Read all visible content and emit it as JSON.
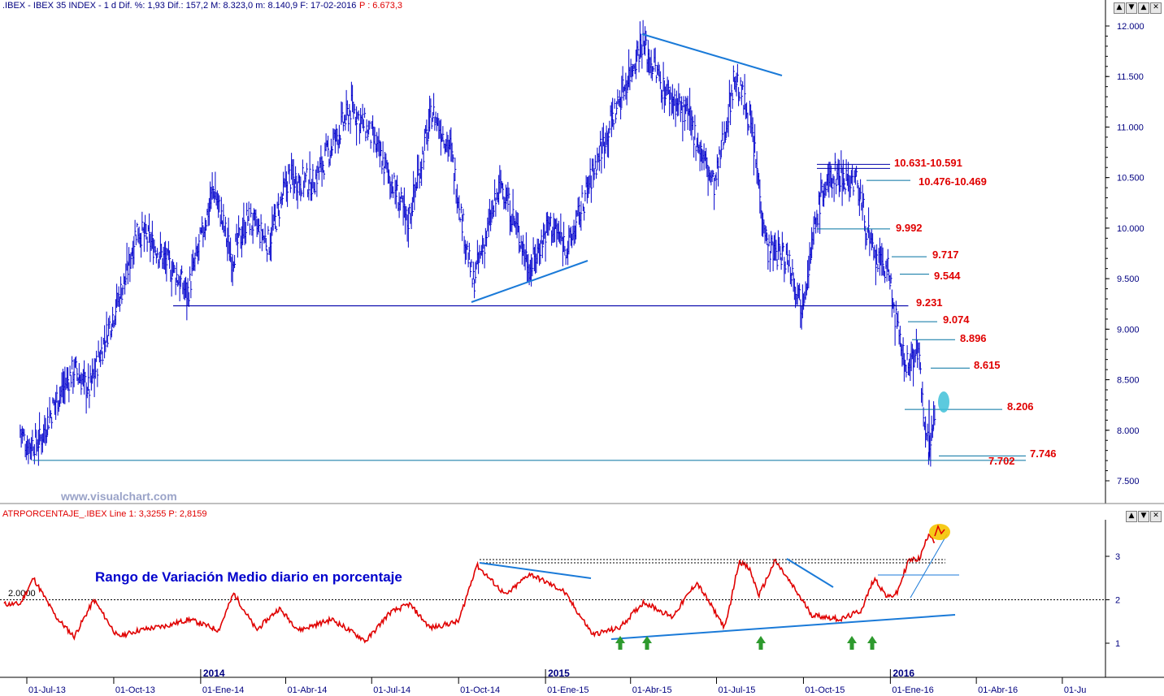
{
  "price_panel": {
    "header_left": ".IBEX - IBEX 35 INDEX - 1 d Dif. %: 1,93 Dif.: 157,2 M: 8.323,0 m: 8.140,9 F: 17-02-2016",
    "header_right": "P : 6.673,3",
    "watermark": "www.visualchart.com"
  },
  "indicator_panel": {
    "header": "ATRPORCENTAJE_.IBEX Line 1: 3,3255  P: 2,8159",
    "annotation": "Rango de Variación Medio diario en porcentaje",
    "ref_label": "2.0000"
  },
  "window_buttons": {
    "price": [
      "▲",
      "▼",
      "▲",
      "✕"
    ],
    "indicator": [
      "▲",
      "▼",
      "✕"
    ]
  },
  "colors": {
    "price_bars": "#0000cc",
    "atr_line": "#e00000",
    "trendline": "#1a7ad8",
    "level_text": "#e00000",
    "arrow": "#2e9a2e",
    "highlight_cyan": "#3fc1d8",
    "highlight_yellow": "#f5c400",
    "axis_text": "#000080",
    "watermark": "#9aa3c8"
  },
  "icons": {
    "up_arrow": "green-up-arrow-icon"
  },
  "chart_data": [
    {
      "type": "ohlc",
      "title": "IBEX 35 INDEX",
      "x_axis": {
        "ticks": [
          "01-Jul-13",
          "01-Oct-13",
          "01-Ene-14",
          "01-Abr-14",
          "01-Jul-14",
          "01-Oct-14",
          "01-Ene-15",
          "01-Abr-15",
          "01-Jul-15",
          "01-Oct-15",
          "01-Ene-16",
          "01-Abr-16",
          "01-Ju"
        ],
        "year_labels": [
          "2014",
          "2015",
          "2016"
        ]
      },
      "y_axis": {
        "range": [
          7300,
          12100
        ],
        "ticks": [
          "12.000",
          "11.500",
          "11.000",
          "10.500",
          "10.000",
          "9.500",
          "9.000",
          "8.500",
          "8.000",
          "7.500"
        ]
      },
      "approx_closes": [
        {
          "date": "2013-06-24",
          "value": 8000
        },
        {
          "date": "2013-07-01",
          "value": 7850
        },
        {
          "date": "2013-07-15",
          "value": 7900
        },
        {
          "date": "2013-08-01",
          "value": 8300
        },
        {
          "date": "2013-08-20",
          "value": 8600
        },
        {
          "date": "2013-09-05",
          "value": 8400
        },
        {
          "date": "2013-09-25",
          "value": 9000
        },
        {
          "date": "2013-10-15",
          "value": 9550
        },
        {
          "date": "2013-10-25",
          "value": 10000
        },
        {
          "date": "2013-11-15",
          "value": 9800
        },
        {
          "date": "2013-12-05",
          "value": 9550
        },
        {
          "date": "2013-12-18",
          "value": 9350
        },
        {
          "date": "2014-01-15",
          "value": 10400
        },
        {
          "date": "2014-02-03",
          "value": 9700
        },
        {
          "date": "2014-02-20",
          "value": 10100
        },
        {
          "date": "2014-03-14",
          "value": 9850
        },
        {
          "date": "2014-04-04",
          "value": 10500
        },
        {
          "date": "2014-04-30",
          "value": 10450
        },
        {
          "date": "2014-06-10",
          "value": 11200
        },
        {
          "date": "2014-07-01",
          "value": 10900
        },
        {
          "date": "2014-07-25",
          "value": 10400
        },
        {
          "date": "2014-08-08",
          "value": 10050
        },
        {
          "date": "2014-09-03",
          "value": 11150
        },
        {
          "date": "2014-09-22",
          "value": 10800
        },
        {
          "date": "2014-10-16",
          "value": 9450
        },
        {
          "date": "2014-11-15",
          "value": 10450
        },
        {
          "date": "2014-12-16",
          "value": 9600
        },
        {
          "date": "2015-01-05",
          "value": 10050
        },
        {
          "date": "2015-01-25",
          "value": 9800
        },
        {
          "date": "2015-03-01",
          "value": 10800
        },
        {
          "date": "2015-04-13",
          "value": 11850
        },
        {
          "date": "2015-05-05",
          "value": 11400
        },
        {
          "date": "2015-06-01",
          "value": 11100
        },
        {
          "date": "2015-06-29",
          "value": 10400
        },
        {
          "date": "2015-07-20",
          "value": 11500
        },
        {
          "date": "2015-08-05",
          "value": 11100
        },
        {
          "date": "2015-08-24",
          "value": 9800
        },
        {
          "date": "2015-09-15",
          "value": 9700
        },
        {
          "date": "2015-09-29",
          "value": 9250
        },
        {
          "date": "2015-10-20",
          "value": 10350
        },
        {
          "date": "2015-11-05",
          "value": 10550
        },
        {
          "date": "2015-11-27",
          "value": 10450
        },
        {
          "date": "2015-12-14",
          "value": 9700
        },
        {
          "date": "2015-12-29",
          "value": 9600
        },
        {
          "date": "2016-01-11",
          "value": 8850
        },
        {
          "date": "2016-01-20",
          "value": 8600
        },
        {
          "date": "2016-01-29",
          "value": 8850
        },
        {
          "date": "2016-02-11",
          "value": 7746
        },
        {
          "date": "2016-02-17",
          "value": 8206
        }
      ],
      "levels": [
        {
          "label": "10.631-10.591",
          "value": 10611
        },
        {
          "label": "10.476-10.469",
          "value": 10472
        },
        {
          "label": "9.992",
          "value": 9992
        },
        {
          "label": "9.717",
          "value": 9717
        },
        {
          "label": "9.544",
          "value": 9544
        },
        {
          "label": "9.231",
          "value": 9231
        },
        {
          "label": "9.074",
          "value": 9074
        },
        {
          "label": "8.896",
          "value": 8896
        },
        {
          "label": "8.615",
          "value": 8615
        },
        {
          "label": "8.206",
          "value": 8206
        },
        {
          "label": "7.746",
          "value": 7746
        },
        {
          "label": "7.702",
          "value": 7702
        }
      ],
      "trendlines": [
        {
          "from": {
            "date": "2015-04-13",
            "value": 11900
          },
          "to": {
            "date": "2015-08-20",
            "value": 11500
          }
        },
        {
          "from": {
            "date": "2014-10-16",
            "value": 9250
          },
          "to": {
            "date": "2015-01-01",
            "value": 9680
          }
        }
      ]
    },
    {
      "type": "line",
      "title": "ATRPORCENTAJE_.IBEX",
      "y_axis": {
        "range": [
          0.25,
          3.7
        ],
        "ticks": [
          "3",
          "2",
          "1"
        ]
      },
      "reference_line": 2.0,
      "series": [
        {
          "points": [
            {
              "date": "2013-06-24",
              "value": 1.9
            },
            {
              "date": "2013-07-08",
              "value": 2.5
            },
            {
              "date": "2013-08-01",
              "value": 1.6
            },
            {
              "date": "2013-08-20",
              "value": 1.15
            },
            {
              "date": "2013-09-10",
              "value": 2.0
            },
            {
              "date": "2013-10-05",
              "value": 1.15
            },
            {
              "date": "2013-10-28",
              "value": 1.3
            },
            {
              "date": "2013-11-25",
              "value": 1.4
            },
            {
              "date": "2013-12-20",
              "value": 1.55
            },
            {
              "date": "2014-01-20",
              "value": 1.3
            },
            {
              "date": "2014-02-05",
              "value": 2.15
            },
            {
              "date": "2014-03-01",
              "value": 1.3
            },
            {
              "date": "2014-03-25",
              "value": 1.8
            },
            {
              "date": "2014-04-15",
              "value": 1.3
            },
            {
              "date": "2014-05-20",
              "value": 1.55
            },
            {
              "date": "2014-06-25",
              "value": 1.05
            },
            {
              "date": "2014-07-20",
              "value": 1.7
            },
            {
              "date": "2014-08-10",
              "value": 1.9
            },
            {
              "date": "2014-09-01",
              "value": 1.35
            },
            {
              "date": "2014-10-01",
              "value": 1.5
            },
            {
              "date": "2014-10-20",
              "value": 2.8
            },
            {
              "date": "2014-11-20",
              "value": 2.1
            },
            {
              "date": "2014-12-15",
              "value": 2.6
            },
            {
              "date": "2015-01-20",
              "value": 2.2
            },
            {
              "date": "2015-02-20",
              "value": 1.2
            },
            {
              "date": "2015-03-20",
              "value": 1.35
            },
            {
              "date": "2015-04-15",
              "value": 1.95
            },
            {
              "date": "2015-05-15",
              "value": 1.6
            },
            {
              "date": "2015-06-10",
              "value": 2.4
            },
            {
              "date": "2015-07-10",
              "value": 1.35
            },
            {
              "date": "2015-07-25",
              "value": 2.9
            },
            {
              "date": "2015-08-05",
              "value": 2.7
            },
            {
              "date": "2015-08-15",
              "value": 2.1
            },
            {
              "date": "2015-09-01",
              "value": 2.9
            },
            {
              "date": "2015-09-20",
              "value": 2.3
            },
            {
              "date": "2015-10-10",
              "value": 1.65
            },
            {
              "date": "2015-11-10",
              "value": 1.55
            },
            {
              "date": "2015-12-01",
              "value": 1.75
            },
            {
              "date": "2015-12-15",
              "value": 2.5
            },
            {
              "date": "2015-12-29",
              "value": 2.05
            },
            {
              "date": "2016-01-08",
              "value": 2.15
            },
            {
              "date": "2016-01-20",
              "value": 2.9
            },
            {
              "date": "2016-02-01",
              "value": 2.95
            },
            {
              "date": "2016-02-11",
              "value": 3.55
            },
            {
              "date": "2016-02-17",
              "value": 3.33
            }
          ]
        }
      ],
      "dotted_levels": [
        2.92,
        2.85
      ],
      "solid_levels": [
        2.58
      ],
      "trendlines": [
        {
          "from": {
            "date": "2015-03-01",
            "value": 1.12
          },
          "to": {
            "date": "2016-02-25",
            "value": 1.68
          }
        },
        {
          "from": {
            "date": "2014-10-15",
            "value": 2.9
          },
          "to": {
            "date": "2015-01-20",
            "value": 2.5
          }
        },
        {
          "from": {
            "date": "2015-09-01",
            "value": 2.97
          },
          "to": {
            "date": "2015-10-01",
            "value": 2.3
          }
        },
        {
          "from": {
            "date": "2016-01-20",
            "value": 2.0
          },
          "to": {
            "date": "2016-02-21",
            "value": 3.45
          }
        }
      ],
      "arrows": [
        "2015-03-01",
        "2015-03-20",
        "2015-07-25",
        "2015-11-01",
        "2015-11-20"
      ]
    }
  ]
}
